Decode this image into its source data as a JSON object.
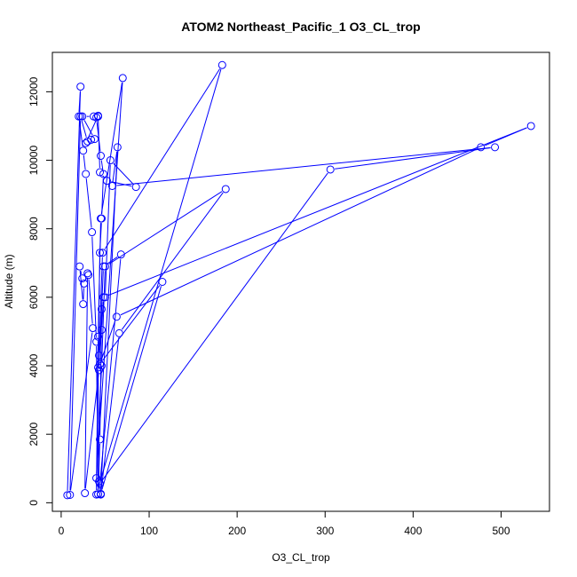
{
  "chart_data": {
    "type": "line",
    "title": "ATOM2 Northeast_Pacific_1 O3_CL_trop",
    "xlabel": "O3_CL_trop",
    "ylabel": "Altitude (m)",
    "xlim": [
      -10,
      555
    ],
    "ylim": [
      -250,
      13150
    ],
    "xticks": [
      0,
      100,
      200,
      300,
      400,
      500
    ],
    "yticks": [
      0,
      2000,
      4000,
      6000,
      8000,
      10000,
      12000
    ],
    "grid": false,
    "legend": "none",
    "color": "#0000ff",
    "series": [
      {
        "points": [
          [
            7,
            220
          ],
          [
            22,
            12150
          ],
          [
            20,
            11280
          ],
          [
            25,
            10280
          ],
          [
            28,
            9600
          ],
          [
            35,
            7900
          ],
          [
            40,
            4700
          ],
          [
            42,
            250
          ],
          [
            44,
            1850
          ],
          [
            46,
            5650
          ],
          [
            50,
            6000
          ],
          [
            56,
            10000
          ],
          [
            85,
            9220
          ],
          [
            52,
            9400
          ],
          [
            44,
            9650
          ],
          [
            42,
            11280
          ],
          [
            40,
            11250
          ],
          [
            45,
            10130
          ],
          [
            48,
            9600
          ],
          [
            46,
            8300
          ],
          [
            44,
            7300
          ],
          [
            42,
            3950
          ],
          [
            43,
            620
          ],
          [
            45,
            240
          ],
          [
            66,
            4950
          ],
          [
            187,
            9160
          ],
          [
            50,
            6900
          ],
          [
            46,
            4000
          ],
          [
            40,
            720
          ],
          [
            70,
            12400
          ],
          [
            45,
            8300
          ],
          [
            42,
            4850
          ],
          [
            40,
            240
          ],
          [
            183,
            12780
          ],
          [
            47,
            7300
          ],
          [
            43,
            4300
          ],
          [
            46,
            5050
          ],
          [
            48,
            6000
          ],
          [
            534,
            11000
          ],
          [
            477,
            10380
          ],
          [
            63,
            5430
          ],
          [
            44,
            4050
          ],
          [
            115,
            6450
          ],
          [
            45,
            260
          ],
          [
            64,
            10380
          ],
          [
            58,
            9250
          ],
          [
            493,
            10380
          ],
          [
            306,
            9730
          ],
          [
            44,
            560
          ],
          [
            68,
            7250
          ],
          [
            48,
            6900
          ],
          [
            43,
            3870
          ],
          [
            27,
            280
          ],
          [
            30,
            6700
          ],
          [
            24,
            6550
          ],
          [
            21,
            6900
          ],
          [
            25,
            5800
          ],
          [
            26,
            6400
          ],
          [
            31,
            6650
          ],
          [
            36,
            5100
          ],
          [
            10,
            230
          ],
          [
            22,
            11280
          ],
          [
            30,
            10550
          ],
          [
            34,
            10600
          ],
          [
            38,
            10620
          ],
          [
            24,
            11280
          ],
          [
            37,
            11280
          ],
          [
            42,
            11300
          ],
          [
            28,
            10500
          ]
        ]
      }
    ]
  }
}
